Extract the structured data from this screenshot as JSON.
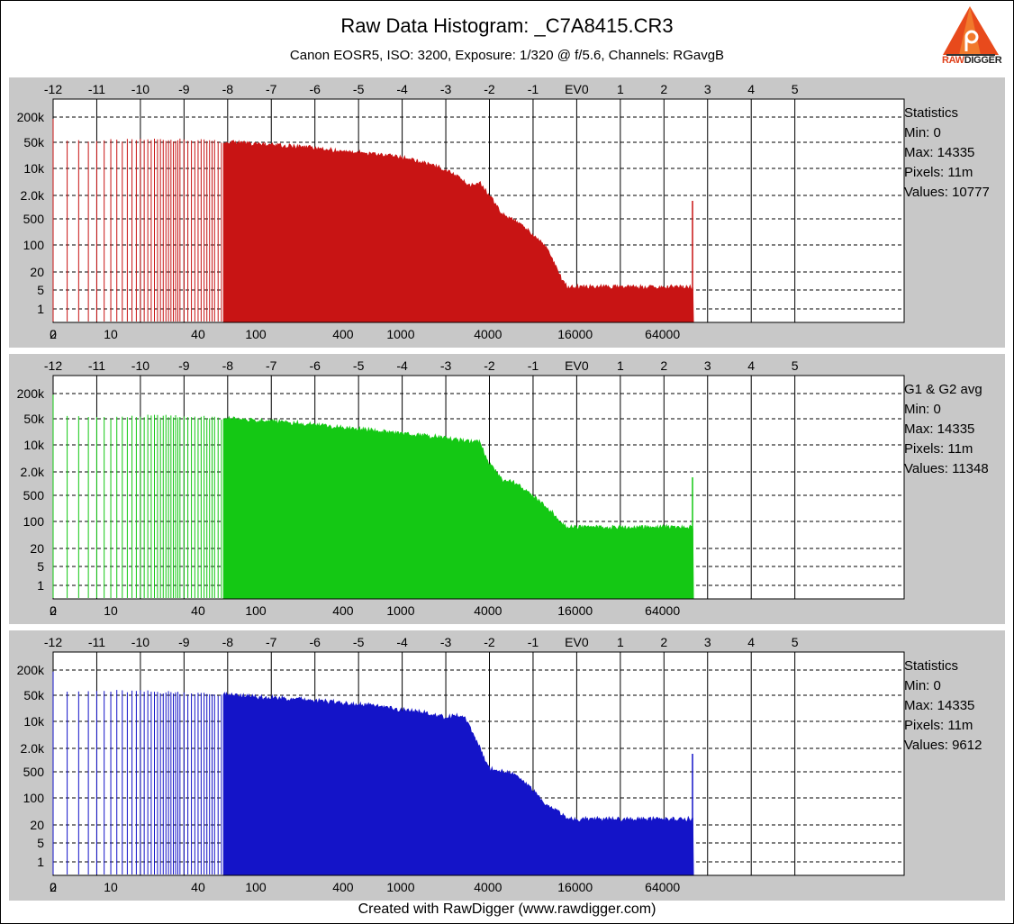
{
  "header": {
    "title": "Raw Data Histogram: _C7A8415.CR3",
    "subtitle": "Canon EOSR5, ISO: 3200, Exposure: 1/320 @ f/5.6, Channels: RGavgB"
  },
  "logo": {
    "text_raw": "RAW",
    "text_digger": "DIGGER"
  },
  "footer": "Created with RawDigger (www.rawdigger.com)",
  "chart_data": [
    {
      "type": "bar",
      "channel": "red",
      "color": "#c81414",
      "top_axis": {
        "ticks": [
          "-12",
          "-11",
          "-10",
          "-9",
          "-8",
          "-7",
          "-6",
          "-5",
          "-4",
          "-3",
          "-2",
          "-1",
          "EV0",
          "1",
          "2",
          "3",
          "4",
          "5"
        ]
      },
      "bottom_axis": {
        "ticks": [
          "0",
          "2",
          "10",
          "40",
          "100",
          "400",
          "1000",
          "4000",
          "16000",
          "64000"
        ]
      },
      "y_axis": {
        "scale": "log",
        "ticks": [
          "200k",
          "50k",
          "10k",
          "2.0k",
          "500",
          "100",
          "20",
          "5",
          "1"
        ]
      },
      "grid": true,
      "envelope": [
        [
          0,
          200000
        ],
        [
          1,
          30
        ],
        [
          2,
          40
        ],
        [
          3,
          45
        ],
        [
          5,
          45
        ],
        [
          8,
          45
        ],
        [
          12,
          45
        ],
        [
          20,
          48
        ],
        [
          40,
          45
        ],
        [
          100,
          35
        ],
        [
          400,
          22
        ],
        [
          1000,
          15
        ],
        [
          2000,
          7
        ],
        [
          3000,
          2.5
        ],
        [
          3500,
          3
        ],
        [
          4000,
          1.5
        ],
        [
          5000,
          0.4
        ],
        [
          6000,
          0.28
        ],
        [
          8000,
          0.12
        ],
        [
          10000,
          0.05
        ],
        [
          13000,
          0.006
        ],
        [
          14000,
          0.004
        ]
      ],
      "stats": {
        "label": "Statistics",
        "min": "Min: 0",
        "max": "Max: 14335",
        "pixels": "Pixels: 11m",
        "values": "Values: 10777"
      }
    },
    {
      "type": "bar",
      "channel": "green",
      "color": "#14c814",
      "top_axis": {
        "ticks": [
          "-12",
          "-11",
          "-10",
          "-9",
          "-8",
          "-7",
          "-6",
          "-5",
          "-4",
          "-3",
          "-2",
          "-1",
          "EV0",
          "1",
          "2",
          "3",
          "4",
          "5"
        ]
      },
      "bottom_axis": {
        "ticks": [
          "0",
          "2",
          "10",
          "40",
          "100",
          "400",
          "1000",
          "4000",
          "16000",
          "64000"
        ]
      },
      "y_axis": {
        "scale": "log",
        "ticks": [
          "200k",
          "50k",
          "10k",
          "2.0k",
          "500",
          "100",
          "20",
          "5",
          "1"
        ]
      },
      "grid": true,
      "envelope": [
        [
          0,
          200000
        ],
        [
          1,
          30
        ],
        [
          2,
          40
        ],
        [
          3,
          45
        ],
        [
          5,
          45
        ],
        [
          8,
          45
        ],
        [
          12,
          45
        ],
        [
          20,
          48
        ],
        [
          40,
          45
        ],
        [
          100,
          35
        ],
        [
          400,
          22
        ],
        [
          1000,
          15
        ],
        [
          2000,
          12
        ],
        [
          3000,
          9
        ],
        [
          3500,
          9
        ],
        [
          4000,
          2.5
        ],
        [
          5000,
          0.8
        ],
        [
          6000,
          0.7
        ],
        [
          8000,
          0.3
        ],
        [
          10000,
          0.15
        ],
        [
          13000,
          0.05
        ],
        [
          14000,
          0.04
        ]
      ],
      "stats": {
        "label": "G1 & G2 avg",
        "min": "Min: 0",
        "max": "Max: 14335",
        "pixels": "Pixels: 11m",
        "values": "Values: 11348"
      }
    },
    {
      "type": "bar",
      "channel": "blue",
      "color": "#1414c8",
      "top_axis": {
        "ticks": [
          "-12",
          "-11",
          "-10",
          "-9",
          "-8",
          "-7",
          "-6",
          "-5",
          "-4",
          "-3",
          "-2",
          "-1",
          "EV0",
          "1",
          "2",
          "3",
          "4",
          "5"
        ]
      },
      "bottom_axis": {
        "ticks": [
          "0",
          "2",
          "10",
          "40",
          "100",
          "400",
          "1000",
          "4000",
          "16000",
          "64000"
        ]
      },
      "y_axis": {
        "scale": "log",
        "ticks": [
          "200k",
          "50k",
          "10k",
          "2.0k",
          "500",
          "100",
          "20",
          "5",
          "1"
        ]
      },
      "grid": true,
      "envelope": [
        [
          0,
          200000
        ],
        [
          1,
          30
        ],
        [
          2,
          40
        ],
        [
          3,
          48
        ],
        [
          5,
          50
        ],
        [
          8,
          52
        ],
        [
          12,
          52
        ],
        [
          20,
          50
        ],
        [
          40,
          45
        ],
        [
          100,
          35
        ],
        [
          400,
          24
        ],
        [
          1000,
          16
        ],
        [
          2000,
          10
        ],
        [
          2700,
          11
        ],
        [
          3200,
          3
        ],
        [
          4000,
          0.4
        ],
        [
          5000,
          0.32
        ],
        [
          6000,
          0.25
        ],
        [
          8000,
          0.1
        ],
        [
          10000,
          0.035
        ],
        [
          13000,
          0.02
        ],
        [
          14000,
          0.015
        ]
      ],
      "stats": {
        "label": "Statistics",
        "min": "Min: 0",
        "max": "Max: 14335",
        "pixels": "Pixels: 11m",
        "values": "Values: 9612"
      }
    }
  ]
}
